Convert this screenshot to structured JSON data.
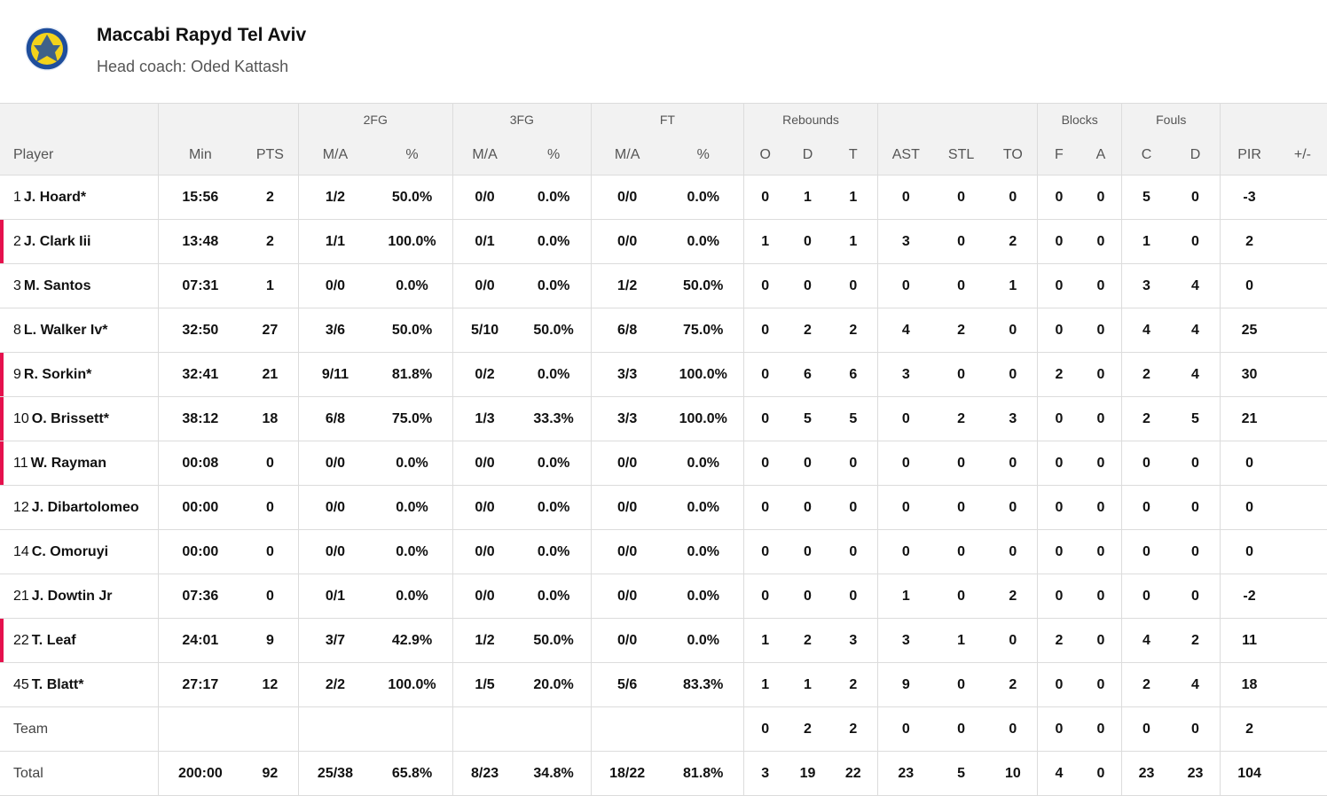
{
  "team": {
    "name": "Maccabi Rapyd Tel Aviv",
    "coach": "Head coach: Oded Kattash",
    "logo": "maccabi-tel-aviv-logo"
  },
  "colors": {
    "accent": "#e5114d",
    "header_bg": "#f2f2f2",
    "logo_blue": "#1f4e9c",
    "logo_yellow": "#f3d21b"
  },
  "groups": {
    "fg2": "2FG",
    "fg3": "3FG",
    "ft": "FT",
    "reb": "Rebounds",
    "blk": "Blocks",
    "fouls": "Fouls"
  },
  "columns": {
    "player": "Player",
    "min": "Min",
    "pts": "PTS",
    "fg2_ma": "M/A",
    "fg2_pct": "%",
    "fg3_ma": "M/A",
    "fg3_pct": "%",
    "ft_ma": "M/A",
    "ft_pct": "%",
    "reb_o": "O",
    "reb_d": "D",
    "reb_t": "T",
    "ast": "AST",
    "stl": "STL",
    "to": "TO",
    "blk_f": "F",
    "blk_a": "A",
    "foul_c": "C",
    "foul_d": "D",
    "pir": "PIR",
    "pm": "+/-"
  },
  "players": [
    {
      "num": "1",
      "name": "J. Hoard*",
      "oncourt": false,
      "stats": [
        "15:56",
        "2",
        "1/2",
        "50.0%",
        "0/0",
        "0.0%",
        "0/0",
        "0.0%",
        "0",
        "1",
        "1",
        "0",
        "0",
        "0",
        "0",
        "0",
        "5",
        "0",
        "-3",
        ""
      ]
    },
    {
      "num": "2",
      "name": "J. Clark Iii",
      "oncourt": true,
      "stats": [
        "13:48",
        "2",
        "1/1",
        "100.0%",
        "0/1",
        "0.0%",
        "0/0",
        "0.0%",
        "1",
        "0",
        "1",
        "3",
        "0",
        "2",
        "0",
        "0",
        "1",
        "0",
        "2",
        ""
      ]
    },
    {
      "num": "3",
      "name": "M. Santos",
      "oncourt": false,
      "stats": [
        "07:31",
        "1",
        "0/0",
        "0.0%",
        "0/0",
        "0.0%",
        "1/2",
        "50.0%",
        "0",
        "0",
        "0",
        "0",
        "0",
        "1",
        "0",
        "0",
        "3",
        "4",
        "0",
        ""
      ]
    },
    {
      "num": "8",
      "name": "L. Walker Iv*",
      "oncourt": false,
      "stats": [
        "32:50",
        "27",
        "3/6",
        "50.0%",
        "5/10",
        "50.0%",
        "6/8",
        "75.0%",
        "0",
        "2",
        "2",
        "4",
        "2",
        "0",
        "0",
        "0",
        "4",
        "4",
        "25",
        ""
      ]
    },
    {
      "num": "9",
      "name": "R. Sorkin*",
      "oncourt": true,
      "stats": [
        "32:41",
        "21",
        "9/11",
        "81.8%",
        "0/2",
        "0.0%",
        "3/3",
        "100.0%",
        "0",
        "6",
        "6",
        "3",
        "0",
        "0",
        "2",
        "0",
        "2",
        "4",
        "30",
        ""
      ]
    },
    {
      "num": "10",
      "name": "O. Brissett*",
      "oncourt": true,
      "stats": [
        "38:12",
        "18",
        "6/8",
        "75.0%",
        "1/3",
        "33.3%",
        "3/3",
        "100.0%",
        "0",
        "5",
        "5",
        "0",
        "2",
        "3",
        "0",
        "0",
        "2",
        "5",
        "21",
        ""
      ]
    },
    {
      "num": "11",
      "name": "W. Rayman",
      "oncourt": true,
      "stats": [
        "00:08",
        "0",
        "0/0",
        "0.0%",
        "0/0",
        "0.0%",
        "0/0",
        "0.0%",
        "0",
        "0",
        "0",
        "0",
        "0",
        "0",
        "0",
        "0",
        "0",
        "0",
        "0",
        ""
      ]
    },
    {
      "num": "12",
      "name": "J. Dibartolomeo",
      "oncourt": false,
      "stats": [
        "00:00",
        "0",
        "0/0",
        "0.0%",
        "0/0",
        "0.0%",
        "0/0",
        "0.0%",
        "0",
        "0",
        "0",
        "0",
        "0",
        "0",
        "0",
        "0",
        "0",
        "0",
        "0",
        ""
      ]
    },
    {
      "num": "14",
      "name": "C. Omoruyi",
      "oncourt": false,
      "stats": [
        "00:00",
        "0",
        "0/0",
        "0.0%",
        "0/0",
        "0.0%",
        "0/0",
        "0.0%",
        "0",
        "0",
        "0",
        "0",
        "0",
        "0",
        "0",
        "0",
        "0",
        "0",
        "0",
        ""
      ]
    },
    {
      "num": "21",
      "name": "J. Dowtin Jr",
      "oncourt": false,
      "stats": [
        "07:36",
        "0",
        "0/1",
        "0.0%",
        "0/0",
        "0.0%",
        "0/0",
        "0.0%",
        "0",
        "0",
        "0",
        "1",
        "0",
        "2",
        "0",
        "0",
        "0",
        "0",
        "-2",
        ""
      ]
    },
    {
      "num": "22",
      "name": "T. Leaf",
      "oncourt": true,
      "stats": [
        "24:01",
        "9",
        "3/7",
        "42.9%",
        "1/2",
        "50.0%",
        "0/0",
        "0.0%",
        "1",
        "2",
        "3",
        "3",
        "1",
        "0",
        "2",
        "0",
        "4",
        "2",
        "11",
        ""
      ]
    },
    {
      "num": "45",
      "name": "T. Blatt*",
      "oncourt": false,
      "stats": [
        "27:17",
        "12",
        "2/2",
        "100.0%",
        "1/5",
        "20.0%",
        "5/6",
        "83.3%",
        "1",
        "1",
        "2",
        "9",
        "0",
        "2",
        "0",
        "0",
        "2",
        "4",
        "18",
        ""
      ]
    }
  ],
  "team_row": {
    "label": "Team",
    "stats": [
      "",
      "",
      "",
      "",
      "",
      "",
      "",
      "",
      "0",
      "2",
      "2",
      "0",
      "0",
      "0",
      "0",
      "0",
      "0",
      "0",
      "2",
      ""
    ]
  },
  "total_row": {
    "label": "Total",
    "stats": [
      "200:00",
      "92",
      "25/38",
      "65.8%",
      "8/23",
      "34.8%",
      "18/22",
      "81.8%",
      "3",
      "19",
      "22",
      "23",
      "5",
      "10",
      "4",
      "0",
      "23",
      "23",
      "104",
      ""
    ]
  }
}
